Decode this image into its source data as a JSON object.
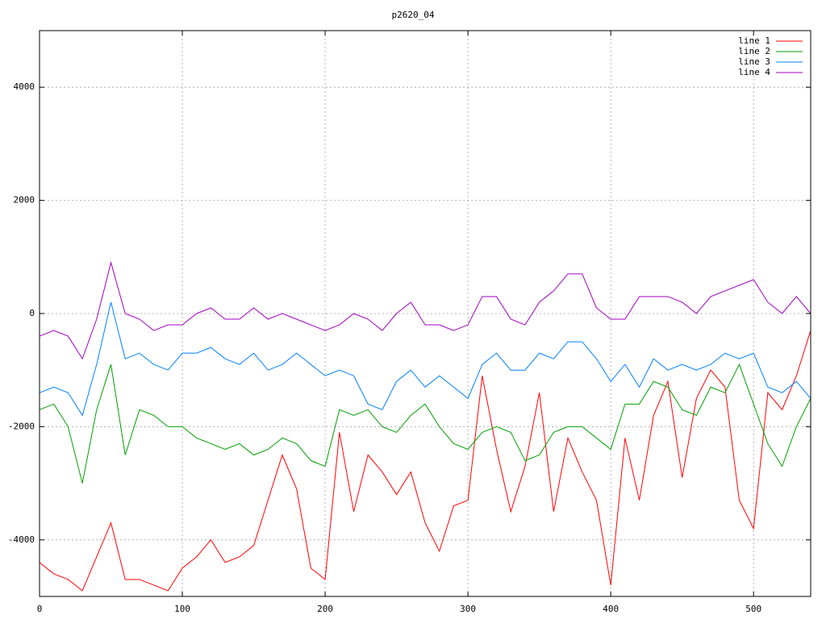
{
  "chart_data": {
    "type": "line",
    "title": "p2620_04",
    "x": [
      0,
      10,
      20,
      30,
      40,
      50,
      60,
      70,
      80,
      90,
      100,
      110,
      120,
      130,
      140,
      150,
      160,
      170,
      180,
      190,
      200,
      210,
      220,
      230,
      240,
      250,
      260,
      270,
      280,
      290,
      300,
      310,
      320,
      330,
      340,
      350,
      360,
      370,
      380,
      390,
      400,
      410,
      420,
      430,
      440,
      450,
      460,
      470,
      480,
      490,
      500,
      510,
      520,
      530,
      540
    ],
    "series": [
      {
        "name": "line 1",
        "color": "#ff0000",
        "values": [
          -4400,
          -4600,
          -4700,
          -4900,
          -4300,
          -3700,
          -4700,
          -4700,
          -4800,
          -4900,
          -4500,
          -4300,
          -4000,
          -4400,
          -4300,
          -4100,
          -3300,
          -2500,
          -3100,
          -4500,
          -4700,
          -2100,
          -3500,
          -2500,
          -2800,
          -3200,
          -2800,
          -3700,
          -4200,
          -3400,
          -3300,
          -1100,
          -2400,
          -3500,
          -2700,
          -1400,
          -3500,
          -2200,
          -2800,
          -3300,
          -4800,
          -2200,
          -3300,
          -1800,
          -1200,
          -2900,
          -1500,
          -1000,
          -1300,
          -3300,
          -3800,
          -1400,
          -1700,
          -1100,
          -300
        ]
      },
      {
        "name": "line 2",
        "color": "#00a000",
        "values": [
          -1700,
          -1600,
          -2000,
          -3000,
          -1700,
          -900,
          -2500,
          -1700,
          -1800,
          -2000,
          -2000,
          -2200,
          -2300,
          -2400,
          -2300,
          -2500,
          -2400,
          -2200,
          -2300,
          -2600,
          -2700,
          -1700,
          -1800,
          -1700,
          -2000,
          -2100,
          -1800,
          -1600,
          -2000,
          -2300,
          -2400,
          -2100,
          -2000,
          -2100,
          -2600,
          -2500,
          -2100,
          -2000,
          -2000,
          -2200,
          -2400,
          -1600,
          -1600,
          -1200,
          -1300,
          -1700,
          -1800,
          -1300,
          -1400,
          -900,
          -1600,
          -2300,
          -2700,
          -2000,
          -1500
        ]
      },
      {
        "name": "line 3",
        "color": "#0080ff",
        "values": [
          -1400,
          -1300,
          -1400,
          -1800,
          -900,
          200,
          -800,
          -700,
          -900,
          -1000,
          -700,
          -700,
          -600,
          -800,
          -900,
          -700,
          -1000,
          -900,
          -700,
          -900,
          -1100,
          -1000,
          -1100,
          -1600,
          -1700,
          -1200,
          -1000,
          -1300,
          -1100,
          -1300,
          -1500,
          -900,
          -700,
          -1000,
          -1000,
          -700,
          -800,
          -500,
          -500,
          -800,
          -1200,
          -900,
          -1300,
          -800,
          -1000,
          -900,
          -1000,
          -900,
          -700,
          -800,
          -700,
          -1300,
          -1400,
          -1200,
          -1500
        ]
      },
      {
        "name": "line 4",
        "color": "#a000c0",
        "values": [
          -400,
          -300,
          -400,
          -800,
          -100,
          900,
          0,
          -100,
          -300,
          -200,
          -200,
          0,
          100,
          -100,
          -100,
          100,
          -100,
          0,
          -100,
          -200,
          -300,
          -200,
          0,
          -100,
          -300,
          0,
          200,
          -200,
          -200,
          -300,
          -200,
          300,
          300,
          -100,
          -200,
          200,
          400,
          700,
          700,
          100,
          -100,
          -100,
          300,
          300,
          300,
          200,
          0,
          300,
          400,
          500,
          600,
          200,
          0,
          300,
          0
        ]
      }
    ],
    "xlim": [
      0,
      540
    ],
    "ylim": [
      -5000,
      5000
    ],
    "xticks": [
      0,
      100,
      200,
      300,
      400,
      500
    ],
    "yticks": [
      -4000,
      -2000,
      0,
      2000,
      4000
    ],
    "grid": true,
    "legend": "top-right"
  }
}
